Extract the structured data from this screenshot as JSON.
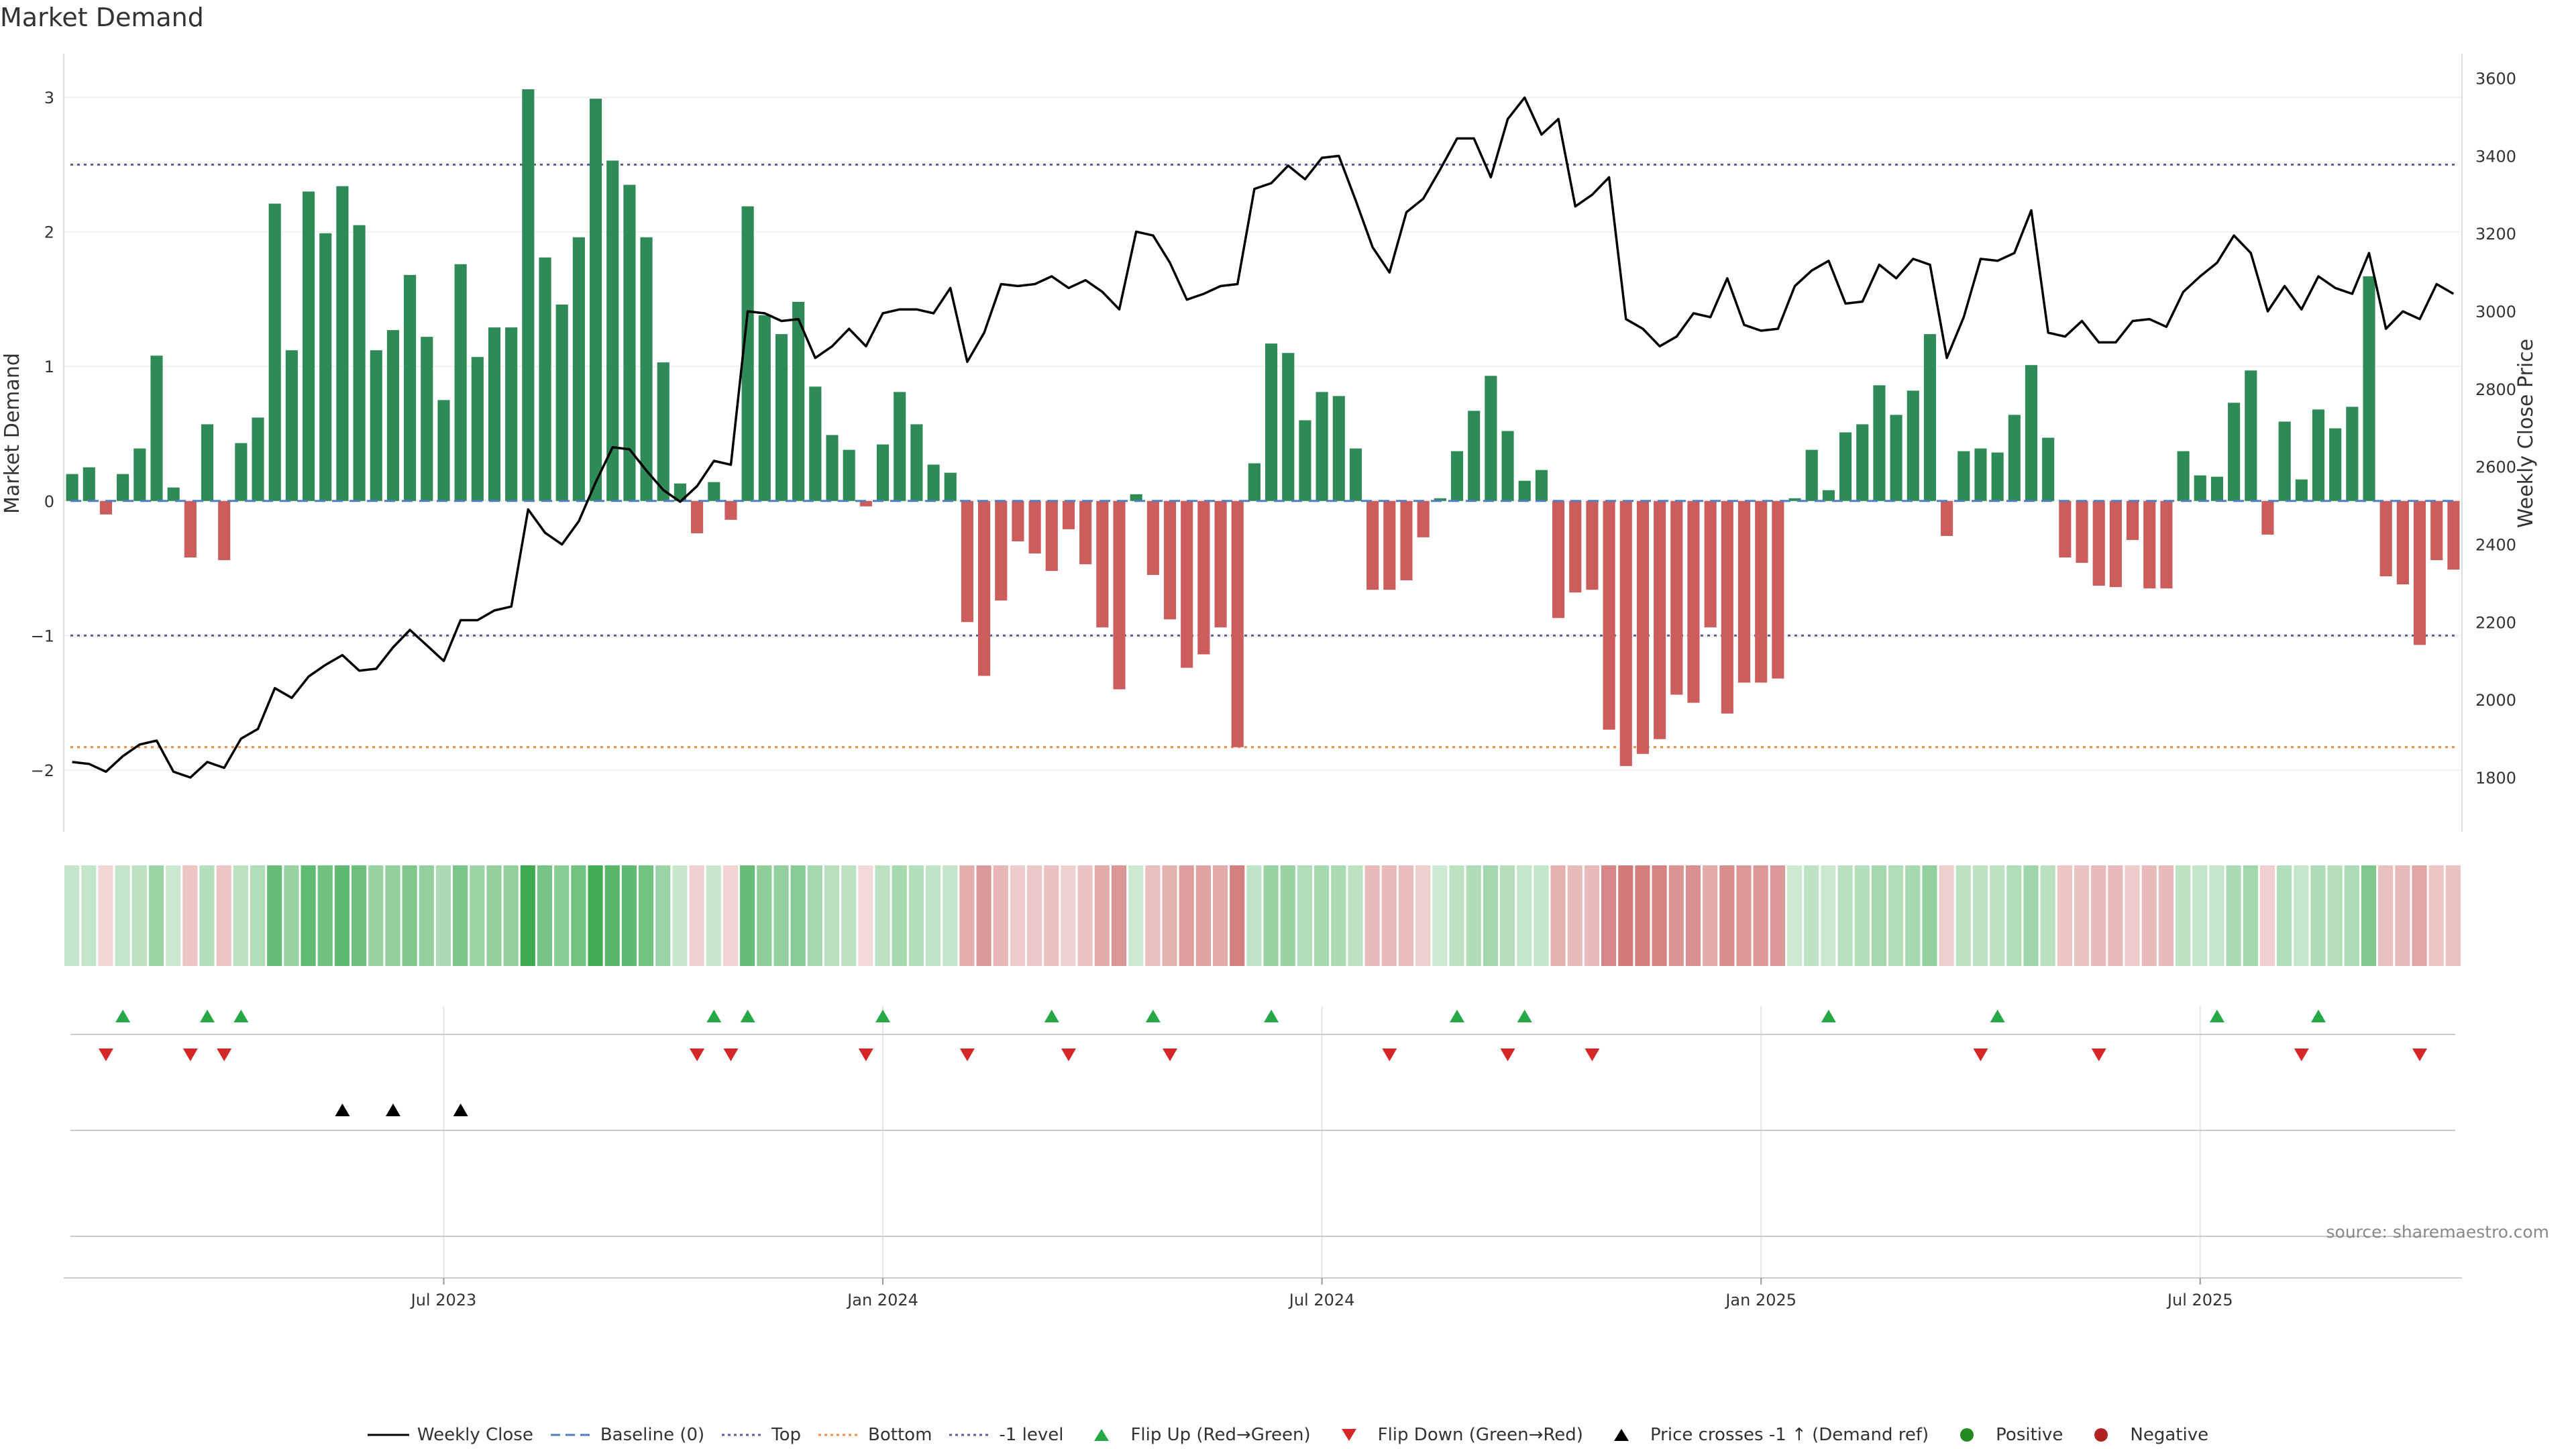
{
  "title": "Market Demand",
  "source": "source: sharemaestro.com",
  "chart_data": {
    "type": "bar",
    "y_left_label": "Market Demand",
    "y_right_label": "Weekly Close Price",
    "y_left_ticks": [
      "3",
      "2",
      "1",
      "0",
      "−1",
      "−2"
    ],
    "y_right_ticks": [
      "3600",
      "3400",
      "3200",
      "3000",
      "2800",
      "2600",
      "2400",
      "2200",
      "2000",
      "1800"
    ],
    "ylim_left": [
      -2.2,
      3.2
    ],
    "ylim_right": [
      1750,
      3620
    ],
    "x_ticks": [
      "Jul 2023",
      "Jan 2024",
      "Jul 2024",
      "Jan 2025",
      "Jul 2025"
    ],
    "x_tick_index": [
      22,
      48,
      74,
      100,
      126
    ],
    "reference_lines": {
      "top": 2.5,
      "bottom": -1.83,
      "minus_one": -1.0
    },
    "demand": [
      0.2,
      0.25,
      -0.1,
      0.2,
      0.39,
      1.08,
      0.1,
      -0.42,
      0.57,
      -0.44,
      0.43,
      0.62,
      2.21,
      1.12,
      2.3,
      1.99,
      2.34,
      2.05,
      1.12,
      1.27,
      1.68,
      1.22,
      0.75,
      1.76,
      1.07,
      1.29,
      1.29,
      3.06,
      1.81,
      1.46,
      1.96,
      2.99,
      2.53,
      2.35,
      1.96,
      1.03,
      0.13,
      -0.24,
      0.14,
      -0.14,
      2.19,
      1.38,
      1.24,
      1.48,
      0.85,
      0.49,
      0.38,
      -0.04,
      0.42,
      0.81,
      0.57,
      0.27,
      0.21,
      -0.9,
      -1.3,
      -0.74,
      -0.3,
      -0.39,
      -0.52,
      -0.21,
      -0.47,
      -0.94,
      -1.4,
      0.05,
      -0.55,
      -0.88,
      -1.24,
      -1.14,
      -0.94,
      -1.83,
      0.28,
      1.17,
      1.1,
      0.6,
      0.81,
      0.78,
      0.39,
      -0.66,
      -0.66,
      -0.59,
      -0.27,
      0.02,
      0.37,
      0.67,
      0.93,
      0.52,
      0.15,
      0.23,
      -0.87,
      -0.68,
      -0.66,
      -1.7,
      -1.97,
      -1.88,
      -1.77,
      -1.44,
      -1.5,
      -0.94,
      -1.58,
      -1.35,
      -1.35,
      -1.32,
      0.02,
      0.38,
      0.08,
      0.51,
      0.57,
      0.86,
      0.64,
      0.82,
      1.24,
      -0.26,
      0.37,
      0.39,
      0.36,
      0.64,
      1.01,
      0.47,
      -0.42,
      -0.46,
      -0.63,
      -0.64,
      -0.29,
      -0.65,
      -0.65,
      0.37,
      0.19,
      0.18,
      0.73,
      0.97,
      -0.25,
      0.59,
      0.16,
      0.68,
      0.54,
      0.7,
      1.67,
      -0.56,
      -0.62,
      -1.07,
      -0.44,
      -0.51
    ],
    "weekly_close": [
      1840,
      1835,
      1815,
      1855,
      1885,
      1895,
      1815,
      1800,
      1840,
      1825,
      1900,
      1925,
      2030,
      2005,
      2060,
      2090,
      2115,
      2075,
      2080,
      2135,
      2180,
      2140,
      2100,
      2205,
      2205,
      2230,
      2240,
      2490,
      2430,
      2400,
      2460,
      2560,
      2650,
      2645,
      2590,
      2540,
      2510,
      2550,
      2615,
      2605,
      3000,
      2995,
      2975,
      2980,
      2880,
      2910,
      2955,
      2910,
      2995,
      3005,
      3005,
      2995,
      3060,
      2870,
      2945,
      3070,
      3065,
      3070,
      3090,
      3060,
      3080,
      3050,
      3005,
      3205,
      3195,
      3125,
      3030,
      3045,
      3065,
      3070,
      3315,
      3330,
      3375,
      3340,
      3395,
      3400,
      3285,
      3165,
      3100,
      3255,
      3290,
      3365,
      3445,
      3445,
      3345,
      3495,
      3550,
      3455,
      3495,
      3270,
      3300,
      3345,
      2980,
      2955,
      2910,
      2935,
      2995,
      2985,
      3085,
      2965,
      2950,
      2955,
      3065,
      3105,
      3130,
      3020,
      3025,
      3120,
      3085,
      3135,
      3120,
      2880,
      2985,
      3135,
      3130,
      3150,
      3260,
      2945,
      2935,
      2975,
      2920,
      2920,
      2975,
      2980,
      2960,
      3050,
      3090,
      3125,
      3195,
      3150,
      3000,
      3065,
      3005,
      3090,
      3060,
      3045,
      3150,
      2955,
      3000,
      2980,
      3070,
      3045
    ],
    "flip_up_index": [
      3,
      8,
      10,
      38,
      40,
      48,
      58,
      64,
      71,
      82,
      86,
      104,
      114,
      127,
      133
    ],
    "flip_down_index": [
      2,
      7,
      9,
      37,
      39,
      47,
      53,
      59,
      65,
      78,
      85,
      90,
      113,
      120,
      132,
      139
    ],
    "price_cross_index": [
      16,
      19,
      23
    ],
    "series": [
      {
        "name": "Weekly Close"
      },
      {
        "name": "Baseline (0)"
      },
      {
        "name": "Top"
      },
      {
        "name": "Bottom"
      },
      {
        "name": "-1 level"
      },
      {
        "name": "Flip Up (Red→Green)"
      },
      {
        "name": "Flip Down (Green→Red)"
      },
      {
        "name": "Price crosses -1 ↑ (Demand ref)"
      },
      {
        "name": "Positive"
      },
      {
        "name": "Negative"
      }
    ],
    "colors": {
      "positive_bar": "#2e8b57",
      "negative_bar": "#cd5c5c",
      "price_line": "#000000",
      "baseline": "#4f7fbf",
      "top_line": "#5b5b9e",
      "bottom_line": "#e8913a",
      "minus_one_line": "#5b5b9e",
      "flip_up": "#27a745",
      "flip_down": "#d62728",
      "price_cross": "#000000",
      "positive_dot": "#228b22",
      "negative_dot": "#b22222"
    }
  }
}
